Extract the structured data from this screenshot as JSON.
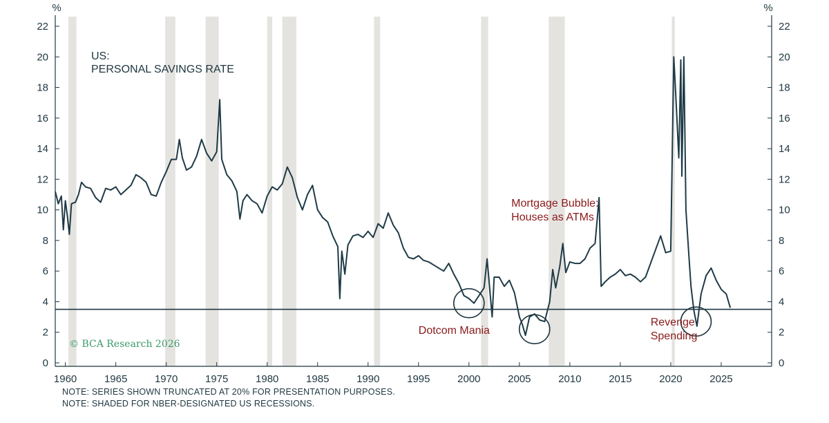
{
  "chart_data": {
    "type": "line",
    "title": "US:",
    "subtitle": "PERSONAL SAVINGS RATE",
    "unit_left": "%",
    "unit_right": "%",
    "xlim": [
      1959,
      2030
    ],
    "ylim": [
      0,
      22
    ],
    "x_ticks": [
      1960,
      1965,
      1970,
      1975,
      1980,
      1985,
      1990,
      1995,
      2000,
      2005,
      2010,
      2015,
      2020,
      2025
    ],
    "y_ticks": [
      0,
      2,
      4,
      6,
      8,
      10,
      12,
      14,
      16,
      18,
      20,
      22
    ],
    "grid": false,
    "recessions": [
      [
        1960.3,
        1961.1
      ],
      [
        1969.9,
        1970.9
      ],
      [
        1973.9,
        1975.2
      ],
      [
        1980.0,
        1980.5
      ],
      [
        1981.5,
        1982.9
      ],
      [
        1990.6,
        1991.2
      ],
      [
        2001.2,
        2001.9
      ],
      [
        2007.9,
        2009.5
      ],
      [
        2020.1,
        2020.4
      ]
    ],
    "reference_line": 3.5,
    "series": [
      {
        "name": "",
        "points": [
          [
            1959.0,
            11.2
          ],
          [
            1959.3,
            10.4
          ],
          [
            1959.6,
            10.9
          ],
          [
            1959.8,
            8.7
          ],
          [
            1960.0,
            10.6
          ],
          [
            1960.2,
            9.6
          ],
          [
            1960.4,
            8.4
          ],
          [
            1960.6,
            10.4
          ],
          [
            1961.0,
            10.5
          ],
          [
            1961.3,
            11.0
          ],
          [
            1961.6,
            11.8
          ],
          [
            1962.0,
            11.5
          ],
          [
            1962.5,
            11.4
          ],
          [
            1963.0,
            10.8
          ],
          [
            1963.5,
            10.5
          ],
          [
            1964.0,
            11.4
          ],
          [
            1964.5,
            11.3
          ],
          [
            1965.0,
            11.5
          ],
          [
            1965.5,
            11.0
          ],
          [
            1966.0,
            11.3
          ],
          [
            1966.5,
            11.6
          ],
          [
            1967.0,
            12.3
          ],
          [
            1967.5,
            12.1
          ],
          [
            1968.0,
            11.8
          ],
          [
            1968.5,
            11.0
          ],
          [
            1969.0,
            10.9
          ],
          [
            1969.5,
            11.8
          ],
          [
            1970.0,
            12.5
          ],
          [
            1970.5,
            13.3
          ],
          [
            1971.0,
            13.3
          ],
          [
            1971.3,
            14.6
          ],
          [
            1971.6,
            13.4
          ],
          [
            1972.0,
            12.6
          ],
          [
            1972.5,
            12.8
          ],
          [
            1973.0,
            13.5
          ],
          [
            1973.5,
            14.6
          ],
          [
            1974.0,
            13.7
          ],
          [
            1974.5,
            13.2
          ],
          [
            1975.0,
            13.8
          ],
          [
            1975.3,
            17.2
          ],
          [
            1975.5,
            13.3
          ],
          [
            1976.0,
            12.3
          ],
          [
            1976.5,
            11.9
          ],
          [
            1977.0,
            11.2
          ],
          [
            1977.3,
            9.4
          ],
          [
            1977.6,
            10.6
          ],
          [
            1978.0,
            11.0
          ],
          [
            1978.5,
            10.6
          ],
          [
            1979.0,
            10.4
          ],
          [
            1979.5,
            9.8
          ],
          [
            1980.0,
            10.9
          ],
          [
            1980.5,
            11.5
          ],
          [
            1981.0,
            11.3
          ],
          [
            1981.5,
            11.7
          ],
          [
            1982.0,
            12.8
          ],
          [
            1982.5,
            12.1
          ],
          [
            1983.0,
            10.8
          ],
          [
            1983.5,
            10.0
          ],
          [
            1984.0,
            11.0
          ],
          [
            1984.5,
            11.6
          ],
          [
            1985.0,
            10.0
          ],
          [
            1985.5,
            9.5
          ],
          [
            1986.0,
            9.2
          ],
          [
            1986.5,
            8.3
          ],
          [
            1987.0,
            7.6
          ],
          [
            1987.2,
            4.2
          ],
          [
            1987.4,
            7.3
          ],
          [
            1987.7,
            5.8
          ],
          [
            1988.0,
            7.7
          ],
          [
            1988.5,
            8.3
          ],
          [
            1989.0,
            8.4
          ],
          [
            1989.5,
            8.2
          ],
          [
            1990.0,
            8.6
          ],
          [
            1990.5,
            8.2
          ],
          [
            1991.0,
            9.1
          ],
          [
            1991.5,
            8.8
          ],
          [
            1992.0,
            9.8
          ],
          [
            1992.5,
            9.0
          ],
          [
            1993.0,
            8.5
          ],
          [
            1993.5,
            7.5
          ],
          [
            1994.0,
            6.9
          ],
          [
            1994.5,
            6.8
          ],
          [
            1995.0,
            7.0
          ],
          [
            1995.5,
            6.7
          ],
          [
            1996.0,
            6.6
          ],
          [
            1996.5,
            6.4
          ],
          [
            1997.0,
            6.2
          ],
          [
            1997.5,
            6.0
          ],
          [
            1998.0,
            6.5
          ],
          [
            1998.5,
            5.8
          ],
          [
            1999.0,
            5.2
          ],
          [
            1999.5,
            4.4
          ],
          [
            2000.0,
            4.2
          ],
          [
            2000.5,
            3.9
          ],
          [
            2001.0,
            4.4
          ],
          [
            2001.5,
            4.9
          ],
          [
            2001.8,
            6.8
          ],
          [
            2002.0,
            5.3
          ],
          [
            2002.3,
            3.0
          ],
          [
            2002.5,
            5.6
          ],
          [
            2003.0,
            5.6
          ],
          [
            2003.5,
            5.0
          ],
          [
            2004.0,
            5.4
          ],
          [
            2004.5,
            4.6
          ],
          [
            2005.0,
            3.0
          ],
          [
            2005.3,
            2.5
          ],
          [
            2005.6,
            1.8
          ],
          [
            2006.0,
            3.0
          ],
          [
            2006.5,
            3.2
          ],
          [
            2007.0,
            2.8
          ],
          [
            2007.5,
            2.7
          ],
          [
            2008.0,
            4.0
          ],
          [
            2008.3,
            6.1
          ],
          [
            2008.6,
            4.9
          ],
          [
            2009.0,
            6.3
          ],
          [
            2009.3,
            7.8
          ],
          [
            2009.6,
            5.9
          ],
          [
            2010.0,
            6.6
          ],
          [
            2010.5,
            6.5
          ],
          [
            2011.0,
            6.5
          ],
          [
            2011.5,
            6.8
          ],
          [
            2012.0,
            7.5
          ],
          [
            2012.5,
            7.8
          ],
          [
            2012.9,
            10.8
          ],
          [
            2013.1,
            5.0
          ],
          [
            2013.5,
            5.3
          ],
          [
            2014.0,
            5.6
          ],
          [
            2014.5,
            5.8
          ],
          [
            2015.0,
            6.1
          ],
          [
            2015.5,
            5.7
          ],
          [
            2016.0,
            5.8
          ],
          [
            2016.5,
            5.6
          ],
          [
            2017.0,
            5.3
          ],
          [
            2017.5,
            5.6
          ],
          [
            2018.0,
            6.5
          ],
          [
            2018.5,
            7.4
          ],
          [
            2019.0,
            8.3
          ],
          [
            2019.5,
            7.2
          ],
          [
            2020.0,
            7.3
          ],
          [
            2020.3,
            20.0
          ],
          [
            2020.5,
            17.5
          ],
          [
            2020.8,
            13.4
          ],
          [
            2021.0,
            19.8
          ],
          [
            2021.1,
            12.2
          ],
          [
            2021.3,
            20.0
          ],
          [
            2021.5,
            10.0
          ],
          [
            2021.8,
            7.0
          ],
          [
            2022.0,
            5.0
          ],
          [
            2022.3,
            3.4
          ],
          [
            2022.6,
            2.4
          ],
          [
            2023.0,
            4.5
          ],
          [
            2023.5,
            5.7
          ],
          [
            2024.0,
            6.2
          ],
          [
            2024.5,
            5.4
          ],
          [
            2025.0,
            4.8
          ],
          [
            2025.5,
            4.5
          ],
          [
            2025.9,
            3.6
          ]
        ]
      }
    ],
    "annotations": [
      {
        "lines": [
          "Mortgage Bubble:",
          "Houses as ATMs"
        ],
        "x": 2004.2,
        "y": 10.2
      },
      {
        "lines": [
          "Dotcom Mania"
        ],
        "x": 1995.0,
        "y": 1.9
      },
      {
        "lines": [
          "Revenge",
          "Spending"
        ],
        "x": 2018.0,
        "y": 2.45
      }
    ],
    "circles": [
      [
        2000.0,
        3.9
      ],
      [
        2006.5,
        2.2
      ],
      [
        2022.5,
        2.7
      ]
    ]
  },
  "watermark": "© BCA Research 2026",
  "notes": [
    "NOTE: SERIES SHOWN TRUNCATED AT 20% FOR PRESENTATION PURPOSES.",
    "NOTE: SHADED FOR NBER-DESIGNATED US RECESSIONS."
  ]
}
